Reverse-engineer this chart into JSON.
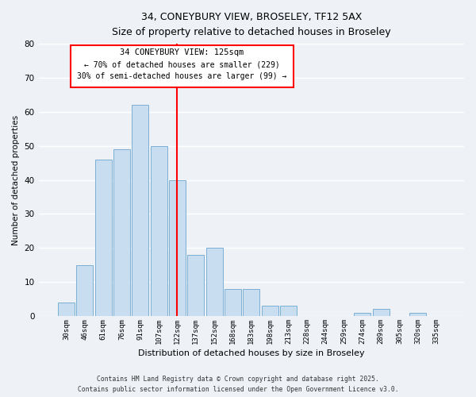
{
  "title_line1": "34, CONEYBURY VIEW, BROSELEY, TF12 5AX",
  "title_line2": "Size of property relative to detached houses in Broseley",
  "xlabel": "Distribution of detached houses by size in Broseley",
  "ylabel": "Number of detached properties",
  "categories": [
    "30sqm",
    "46sqm",
    "61sqm",
    "76sqm",
    "91sqm",
    "107sqm",
    "122sqm",
    "137sqm",
    "152sqm",
    "168sqm",
    "183sqm",
    "198sqm",
    "213sqm",
    "228sqm",
    "244sqm",
    "259sqm",
    "274sqm",
    "289sqm",
    "305sqm",
    "320sqm",
    "335sqm"
  ],
  "values": [
    4,
    15,
    46,
    49,
    62,
    50,
    40,
    18,
    20,
    8,
    8,
    3,
    3,
    0,
    0,
    0,
    1,
    2,
    0,
    1,
    0
  ],
  "bar_color": "#c8ddef",
  "bar_edge_color": "#7aafd4",
  "vline_x_index": 6,
  "vline_color": "red",
  "annotation_title": "34 CONEYBURY VIEW: 125sqm",
  "annotation_line1": "← 70% of detached houses are smaller (229)",
  "annotation_line2": "30% of semi-detached houses are larger (99) →",
  "annotation_box_color": "white",
  "annotation_box_edge_color": "red",
  "ylim": [
    0,
    80
  ],
  "yticks": [
    0,
    10,
    20,
    30,
    40,
    50,
    60,
    70,
    80
  ],
  "footer_line1": "Contains HM Land Registry data © Crown copyright and database right 2025.",
  "footer_line2": "Contains public sector information licensed under the Open Government Licence v3.0.",
  "background_color": "#eef2f7",
  "grid_color": "#ffffff"
}
